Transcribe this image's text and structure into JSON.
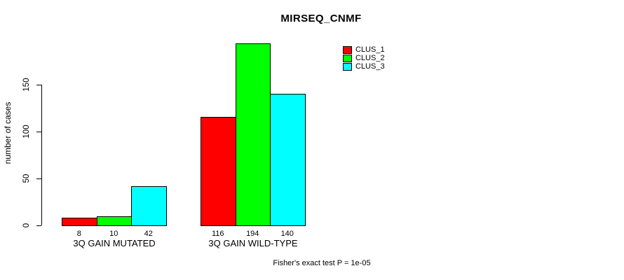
{
  "chart_data": {
    "type": "bar",
    "title": "MIRSEQ_CNMF",
    "ylabel": "number of cases",
    "xlabel": "",
    "categories": [
      "3Q GAIN MUTATED",
      "3Q GAIN WILD-TYPE"
    ],
    "series": [
      {
        "name": "CLUS_1",
        "color": "#ff0000",
        "values": [
          8,
          116
        ]
      },
      {
        "name": "CLUS_2",
        "color": "#00ff00",
        "values": [
          10,
          194
        ]
      },
      {
        "name": "CLUS_3",
        "color": "#00ffff",
        "values": [
          42,
          140
        ]
      }
    ],
    "bar_value_labels": [
      [
        "8",
        "10",
        "42"
      ],
      [
        "116",
        "194",
        "140"
      ]
    ],
    "yticks": [
      "0",
      "50",
      "100",
      "150"
    ],
    "ylim": [
      0,
      150
    ],
    "grid": false,
    "legend_position": "top-right",
    "caption": "Fisher's exact test P = 1e-05",
    "axis_color": "#000000",
    "bar_border_color": "#000000",
    "background_color": "#ffffff"
  }
}
